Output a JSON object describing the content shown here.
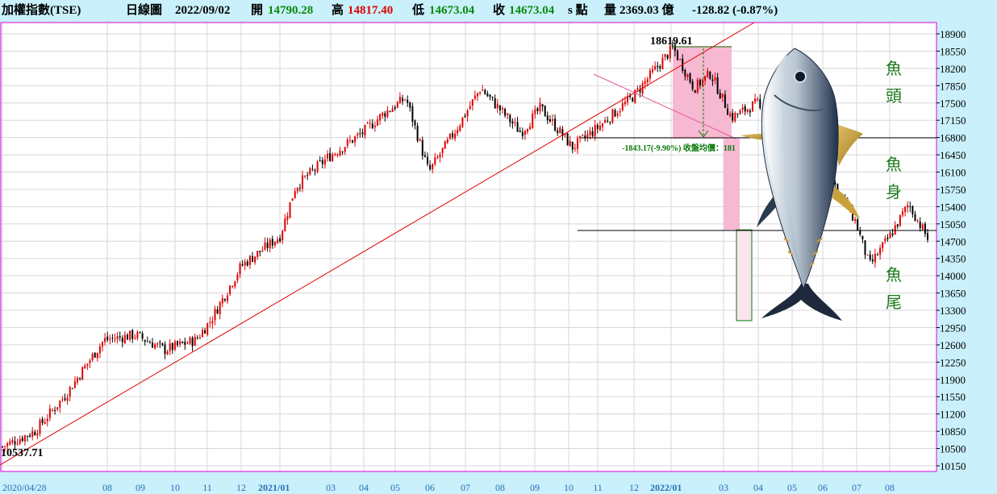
{
  "header": {
    "title": "加權指數(TSE)",
    "period": "日線圖",
    "date": "2022/09/02",
    "open_label": "開",
    "open": "14790.28",
    "high_label": "高",
    "high": "14817.40",
    "low_label": "低",
    "low": "14673.04",
    "close_label": "收",
    "close": "14673.04",
    "unit": "s 點",
    "volume_label": "量",
    "volume": "2369.03 億",
    "change": "-128.82 (-0.87%)"
  },
  "colors": {
    "background": "#c9f0fb",
    "plot_bg": "#ffffff",
    "grid": "#d7d7d7",
    "up": "#e00000",
    "down": "#000000",
    "trend": "#e00000",
    "pink": "#f7b9d2",
    "frame": "#e000e0",
    "annotation_text": "#0a7a0a",
    "date_axis": "#2a6fb5"
  },
  "chart_data": {
    "type": "candlestick",
    "ylim": [
      10150,
      19000
    ],
    "yticks": [
      "18900",
      "18550",
      "18200",
      "17850",
      "17500",
      "17150",
      "16800",
      "16450",
      "16100",
      "15750",
      "15400",
      "15050",
      "14700",
      "14350",
      "14000",
      "13650",
      "13300",
      "12950",
      "12600",
      "12250",
      "11900",
      "11550",
      "11200",
      "10850",
      "10500",
      "10150"
    ],
    "x_labels": [
      {
        "text": "2020/04/28",
        "bold": false
      },
      {
        "text": "08",
        "bold": false
      },
      {
        "text": "09",
        "bold": false
      },
      {
        "text": "10",
        "bold": false
      },
      {
        "text": "11",
        "bold": false
      },
      {
        "text": "12",
        "bold": false
      },
      {
        "text": "2021/01",
        "bold": true
      },
      {
        "text": "03",
        "bold": false
      },
      {
        "text": "04",
        "bold": false
      },
      {
        "text": "05",
        "bold": false
      },
      {
        "text": "06",
        "bold": false
      },
      {
        "text": "07",
        "bold": false
      },
      {
        "text": "08",
        "bold": false
      },
      {
        "text": "09",
        "bold": false
      },
      {
        "text": "10",
        "bold": false
      },
      {
        "text": "11",
        "bold": false
      },
      {
        "text": "12",
        "bold": false
      },
      {
        "text": "2022/01",
        "bold": true
      },
      {
        "text": "03",
        "bold": false
      },
      {
        "text": "04",
        "bold": false
      },
      {
        "text": "05",
        "bold": false
      },
      {
        "text": "06",
        "bold": false
      },
      {
        "text": "07",
        "bold": false
      },
      {
        "text": "08",
        "bold": false
      }
    ],
    "price_path_dates": [
      "2020/04/28",
      "2020/05/28",
      "2020/06/26",
      "2020/07/10",
      "2020/07/31",
      "2020/08/28",
      "2020/09/25",
      "2020/10/23",
      "2020/11/05",
      "2020/12/01",
      "2021/01/04",
      "2021/01/21",
      "2021/02/26",
      "2021/03/31",
      "2021/04/22",
      "2021/05/12",
      "2021/05/31",
      "2021/06/24",
      "2021/07/15",
      "2021/08/20",
      "2021/09/06",
      "2021/10/05",
      "2021/11/01",
      "2021/12/01",
      "2022/01/05",
      "2022/01/28",
      "2022/02/15",
      "2022/03/08",
      "2022/03/31",
      "2022/04/29",
      "2022/05/31",
      "2022/06/30",
      "2022/07/13",
      "2022/08/01",
      "2022/08/16",
      "2022/09/02"
    ],
    "price_path_values": [
      10537.71,
      10850,
      11600,
      12050,
      12700,
      12800,
      12500,
      12700,
      13100,
      14200,
      14800,
      15800,
      16400,
      16900,
      17300,
      17600,
      16100,
      17000,
      17800,
      16900,
      17400,
      16600,
      17000,
      17650,
      18619.61,
      17800,
      18100,
      17200,
      17500,
      16000,
      16300,
      15100,
      14200,
      14800,
      15450,
      14673.04
    ],
    "annotations": {
      "peak": "18619.61",
      "start_low": "10537.71",
      "drop": "-1843.17(-9.90%) 收盤均價：181",
      "fish_head": "魚\n頭",
      "fish_body": "魚\n身",
      "fish_tail": "魚\n尾"
    }
  }
}
